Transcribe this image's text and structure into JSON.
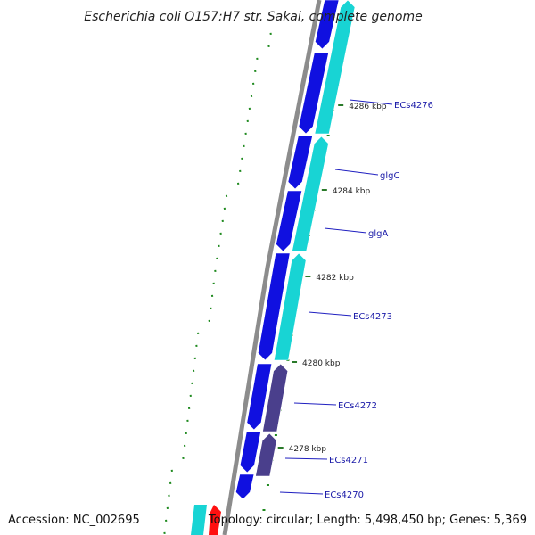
{
  "title": "Escherichia coli O157:H7 str. Sakai, complete genome",
  "accession": "Accession: NC_002695",
  "summary": "Topology: circular; Length: 5,498,450 bp; Genes: 5,369",
  "colors": {
    "backbone": "#8c8c8c",
    "forward_cds": "#1010e0",
    "reverse_cds": "#18d4d4",
    "reverse_cds_alt": "#4a3f8c",
    "rna": "#ff1010",
    "gc_dots": "#1f8a1f",
    "label_line": "#2020c0",
    "tick_line": "#2a7a2a"
  },
  "ticks": [
    {
      "label": "4286 kbp"
    },
    {
      "label": "4284 kbp"
    },
    {
      "label": "4282 kbp"
    },
    {
      "label": "4280 kbp"
    },
    {
      "label": "4278 kbp"
    }
  ],
  "genes": [
    {
      "label": "ECs4276"
    },
    {
      "label": "glgC"
    },
    {
      "label": "glgA"
    },
    {
      "label": "ECs4273"
    },
    {
      "label": "ECs4272"
    },
    {
      "label": "ECs4271"
    },
    {
      "label": "ECs4270"
    }
  ]
}
